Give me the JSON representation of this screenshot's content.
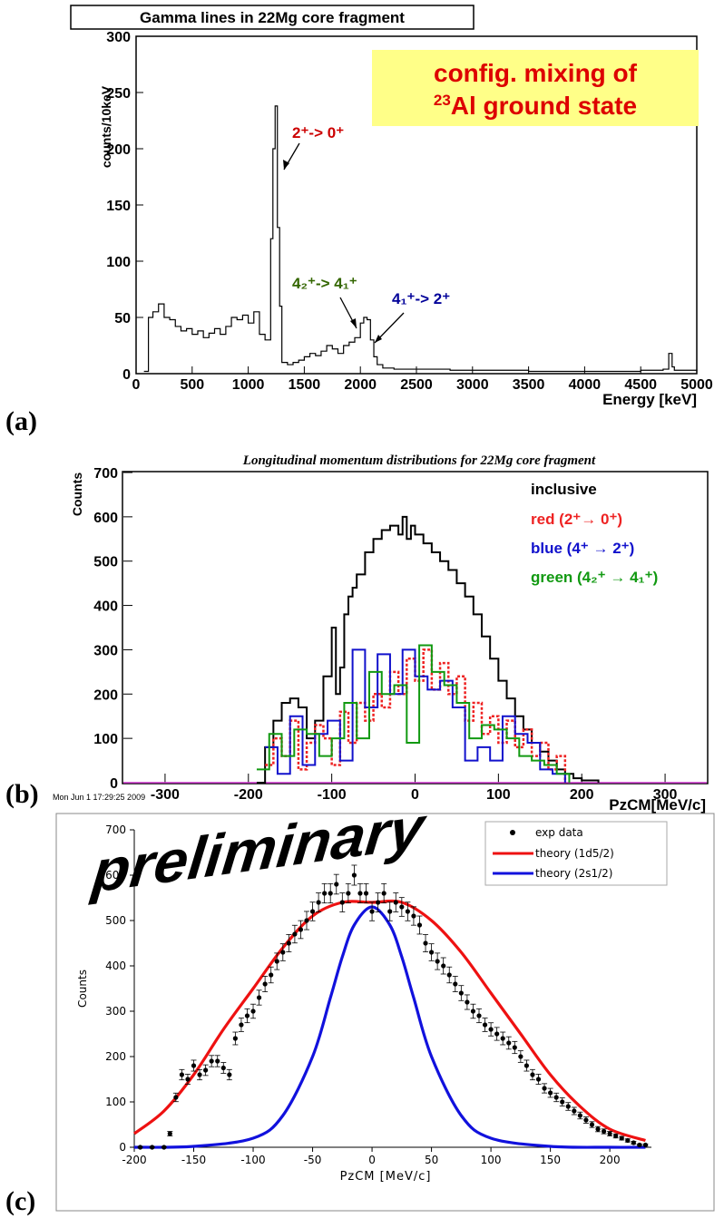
{
  "chart_data": [
    {
      "panel": "(a)",
      "type": "line",
      "title": "Gamma lines in 22Mg core fragment",
      "xlabel": "Energy [keV]",
      "ylabel": "counts/10keV",
      "xlim": [
        0,
        5000
      ],
      "ylim": [
        0,
        300
      ],
      "xticks": [
        0,
        500,
        1000,
        1500,
        2000,
        2500,
        3000,
        3500,
        4000,
        4500,
        5000
      ],
      "yticks": [
        0,
        50,
        100,
        150,
        200,
        250,
        300
      ],
      "callout": {
        "line1": "config. mixing of",
        "line2_sup": "23",
        "line2": "Al ground state"
      },
      "annotations": [
        {
          "text": "2⁺-> 0⁺",
          "color": "#cc0000"
        },
        {
          "text": "4₂⁺-> 4₁⁺",
          "color": "#336600"
        },
        {
          "text": "4₁⁺-> 2⁺",
          "color": "#000099"
        }
      ],
      "series": [
        {
          "x": [
            70,
            110,
            150,
            200,
            250,
            300,
            350,
            400,
            450,
            500,
            550,
            600,
            650,
            700,
            750,
            800,
            850,
            900,
            950,
            1000,
            1050,
            1100,
            1150,
            1200,
            1220,
            1240,
            1260,
            1280,
            1300,
            1350,
            1400,
            1450,
            1500,
            1550,
            1600,
            1650,
            1700,
            1750,
            1800,
            1850,
            1900,
            1950,
            2000,
            2030,
            2060,
            2090,
            2120,
            2150,
            2200,
            2300,
            2500,
            2800,
            3000,
            3300,
            3500,
            3800,
            4000,
            4300,
            4500,
            4700,
            4750,
            4780,
            4800,
            5000
          ],
          "y": [
            2,
            50,
            55,
            62,
            50,
            48,
            42,
            38,
            40,
            35,
            38,
            32,
            36,
            40,
            35,
            42,
            50,
            48,
            52,
            45,
            55,
            35,
            30,
            120,
            200,
            238,
            130,
            60,
            10,
            8,
            10,
            12,
            15,
            18,
            16,
            20,
            25,
            22,
            18,
            25,
            28,
            32,
            45,
            50,
            48,
            30,
            15,
            8,
            5,
            4,
            4,
            3,
            3,
            3,
            2,
            2,
            2,
            2,
            3,
            4,
            18,
            6,
            3,
            2
          ]
        }
      ]
    },
    {
      "panel": "(b)",
      "type": "line",
      "title": "Longitudinal momentum distributions for 22Mg core fragment",
      "xlabel": "PzCM[MeV/c]",
      "ylabel": "Counts",
      "xlim": [
        -350,
        350
      ],
      "ylim": [
        0,
        700
      ],
      "xticks": [
        -300,
        -200,
        -100,
        0,
        100,
        200,
        300
      ],
      "yticks": [
        0,
        100,
        200,
        300,
        400,
        500,
        600,
        700
      ],
      "timestamp": "Mon Jun  1 17:29:25 2009",
      "legend": [
        {
          "label": "inclusive",
          "color": "#000000"
        },
        {
          "label": "red (2⁺→ 0⁺)",
          "color": "#ee2222"
        },
        {
          "label": "blue (4⁺ → 2⁺)",
          "color": "#1111cc"
        },
        {
          "label": "green (4₂⁺ → 4₁⁺)",
          "color": "#119911"
        }
      ],
      "series": [
        {
          "name": "inclusive",
          "color": "#000000",
          "x": [
            -190,
            -180,
            -170,
            -160,
            -150,
            -140,
            -130,
            -120,
            -110,
            -100,
            -95,
            -90,
            -85,
            -80,
            -75,
            -70,
            -60,
            -50,
            -40,
            -30,
            -20,
            -15,
            -10,
            -5,
            0,
            10,
            20,
            30,
            40,
            50,
            60,
            70,
            80,
            90,
            100,
            110,
            120,
            130,
            140,
            150,
            160,
            170,
            180,
            190,
            200,
            220
          ],
          "y": [
            0,
            80,
            140,
            180,
            190,
            170,
            100,
            140,
            240,
            350,
            200,
            260,
            380,
            420,
            440,
            470,
            520,
            550,
            570,
            580,
            560,
            600,
            550,
            580,
            560,
            540,
            520,
            500,
            480,
            450,
            420,
            380,
            330,
            280,
            230,
            190,
            150,
            120,
            90,
            70,
            50,
            30,
            20,
            10,
            5,
            0
          ]
        },
        {
          "name": "red (2⁺→ 0⁺)",
          "color": "#ee2222",
          "x": [
            -180,
            -170,
            -160,
            -150,
            -140,
            -130,
            -120,
            -110,
            -100,
            -90,
            -80,
            -70,
            -60,
            -50,
            -40,
            -30,
            -20,
            -10,
            0,
            10,
            20,
            30,
            40,
            50,
            60,
            70,
            80,
            90,
            100,
            110,
            120,
            130,
            140,
            150,
            160,
            170,
            180
          ],
          "y": [
            40,
            100,
            60,
            140,
            30,
            90,
            130,
            100,
            40,
            160,
            90,
            180,
            140,
            200,
            170,
            250,
            200,
            280,
            230,
            300,
            210,
            270,
            200,
            240,
            140,
            180,
            110,
            150,
            90,
            140,
            80,
            120,
            60,
            90,
            30,
            60,
            0
          ]
        },
        {
          "name": "blue (4⁺ → 2⁺)",
          "color": "#1111cc",
          "x": [
            -180,
            -165,
            -150,
            -135,
            -120,
            -105,
            -90,
            -75,
            -60,
            -45,
            -30,
            -15,
            0,
            15,
            30,
            45,
            60,
            75,
            90,
            105,
            120,
            135,
            150,
            165,
            180
          ],
          "y": [
            80,
            20,
            150,
            40,
            110,
            140,
            50,
            300,
            170,
            290,
            200,
            300,
            240,
            210,
            230,
            170,
            50,
            80,
            50,
            150,
            110,
            90,
            30,
            20,
            0
          ]
        },
        {
          "name": "green (4₂⁺ → 4₁⁺)",
          "color": "#119911",
          "x": [
            -190,
            -175,
            -160,
            -145,
            -130,
            -115,
            -100,
            -85,
            -70,
            -55,
            -40,
            -25,
            -10,
            5,
            20,
            35,
            50,
            65,
            80,
            95,
            110,
            125,
            140,
            155,
            170,
            185
          ],
          "y": [
            30,
            110,
            60,
            120,
            110,
            60,
            100,
            180,
            100,
            250,
            200,
            220,
            90,
            310,
            250,
            220,
            180,
            100,
            130,
            120,
            100,
            60,
            50,
            40,
            20,
            0
          ]
        }
      ]
    },
    {
      "panel": "(c)",
      "type": "scatter",
      "xlabel": "PzCM [MeV/c]",
      "ylabel": "Counts",
      "xlim": [
        -200,
        235
      ],
      "ylim": [
        0,
        700
      ],
      "xticks": [
        -200,
        -150,
        -100,
        -50,
        0,
        50,
        100,
        150,
        200
      ],
      "yticks": [
        0,
        100,
        200,
        300,
        400,
        500,
        600,
        700
      ],
      "watermark": "preliminary",
      "legend": [
        {
          "label": "exp data",
          "color": "#000000"
        },
        {
          "label": "theory (1d5/2)",
          "color": "#ee1111"
        },
        {
          "label": "theory (2s1/2)",
          "color": "#1111dd"
        }
      ],
      "series": [
        {
          "name": "exp data",
          "x": [
            -205,
            -195,
            -185,
            -175,
            -170,
            -165,
            -160,
            -155,
            -150,
            -145,
            -140,
            -135,
            -130,
            -125,
            -120,
            -115,
            -110,
            -105,
            -100,
            -95,
            -90,
            -85,
            -80,
            -75,
            -70,
            -65,
            -60,
            -55,
            -50,
            -45,
            -40,
            -35,
            -30,
            -25,
            -20,
            -15,
            -10,
            -5,
            0,
            5,
            10,
            15,
            20,
            25,
            30,
            35,
            40,
            45,
            50,
            55,
            60,
            65,
            70,
            75,
            80,
            85,
            90,
            95,
            100,
            105,
            110,
            115,
            120,
            125,
            130,
            135,
            140,
            145,
            150,
            155,
            160,
            165,
            170,
            175,
            180,
            185,
            190,
            195,
            200,
            205,
            210,
            215,
            220,
            225,
            230
          ],
          "y": [
            0,
            0,
            0,
            0,
            30,
            110,
            160,
            150,
            180,
            160,
            170,
            190,
            190,
            175,
            160,
            240,
            270,
            290,
            300,
            330,
            360,
            380,
            410,
            430,
            450,
            470,
            480,
            500,
            520,
            540,
            560,
            560,
            580,
            540,
            560,
            600,
            560,
            560,
            520,
            540,
            560,
            520,
            540,
            530,
            520,
            510,
            490,
            450,
            430,
            410,
            400,
            380,
            360,
            340,
            320,
            300,
            290,
            270,
            260,
            250,
            240,
            230,
            220,
            200,
            180,
            160,
            150,
            130,
            120,
            110,
            100,
            90,
            80,
            70,
            60,
            50,
            40,
            35,
            30,
            25,
            20,
            15,
            10,
            5,
            5
          ]
        },
        {
          "name": "theory (1d5/2)",
          "x": [
            -200,
            -175,
            -150,
            -125,
            -100,
            -75,
            -50,
            -25,
            0,
            25,
            50,
            75,
            100,
            125,
            150,
            175,
            200,
            230
          ],
          "y": [
            30,
            80,
            160,
            260,
            350,
            440,
            510,
            540,
            540,
            540,
            500,
            430,
            340,
            250,
            160,
            90,
            40,
            15
          ]
        },
        {
          "name": "theory (2s1/2)",
          "x": [
            -200,
            -150,
            -100,
            -75,
            -50,
            -35,
            -25,
            -15,
            0,
            15,
            25,
            35,
            50,
            75,
            100,
            150,
            200,
            230
          ],
          "y": [
            0,
            2,
            20,
            70,
            200,
            330,
            420,
            490,
            530,
            490,
            420,
            330,
            200,
            70,
            20,
            2,
            0,
            0
          ]
        }
      ]
    }
  ]
}
